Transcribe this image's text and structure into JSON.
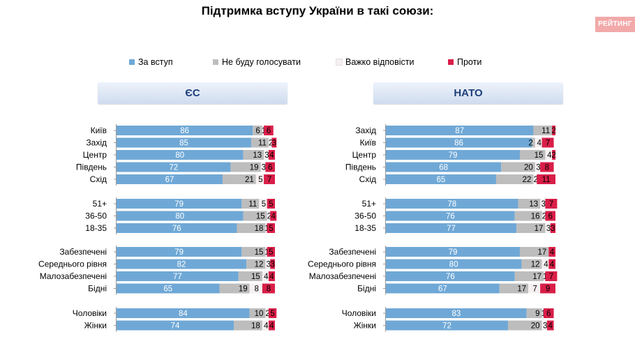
{
  "title": "Підтримка вступу України в такі союзи:",
  "logo": "РЕЙТИНГ",
  "colors": {
    "support": "#6fa8d6",
    "notvote": "#bdbdbd",
    "hard": "#f6f0f1",
    "against": "#d91e48",
    "axis": "#9a9a9a"
  },
  "legend": [
    {
      "key": "support",
      "label": "За вступ"
    },
    {
      "key": "notvote",
      "label": "Не буду голосувати"
    },
    {
      "key": "hard",
      "label": "Важко відповісти"
    },
    {
      "key": "against",
      "label": "Проти"
    }
  ],
  "chart_data": [
    {
      "type": "bar",
      "stacked": true,
      "orientation": "horizontal",
      "title": "ЄС",
      "xlim": [
        0,
        100
      ],
      "categories": [
        "Київ",
        "Захід",
        "Центр",
        "Південь",
        "Схід",
        "51+",
        "36-50",
        "18-35",
        "Забезпечені",
        "Середнього рівня",
        "Малозабезпечені",
        "Бідні",
        "Чоловіки",
        "Жінки"
      ],
      "groups": [
        [
          0,
          1,
          2,
          3,
          4
        ],
        [
          5,
          6,
          7
        ],
        [
          8,
          9,
          10,
          11
        ],
        [
          12,
          13
        ]
      ],
      "series": [
        {
          "name": "За вступ",
          "key": "support",
          "values": [
            86,
            85,
            80,
            72,
            67,
            79,
            80,
            76,
            79,
            82,
            77,
            65,
            84,
            74
          ]
        },
        {
          "name": "Не буду голосувати",
          "key": "notvote",
          "values": [
            6,
            11,
            13,
            19,
            21,
            11,
            15,
            18,
            15,
            12,
            15,
            19,
            10,
            18
          ]
        },
        {
          "name": "Важко відповісти",
          "key": "hard",
          "values": [
            1,
            2,
            3,
            3,
            5,
            5,
            2,
            1,
            1,
            3,
            4,
            8,
            2,
            4
          ]
        },
        {
          "name": "Проти",
          "key": "against",
          "values": [
            6,
            3,
            4,
            6,
            7,
            5,
            4,
            5,
            5,
            3,
            4,
            8,
            5,
            4
          ]
        }
      ]
    },
    {
      "type": "bar",
      "stacked": true,
      "orientation": "horizontal",
      "title": "НАТО",
      "xlim": [
        0,
        100
      ],
      "categories": [
        "Захід",
        "Київ",
        "Центр",
        "Південь",
        "Схід",
        "51+",
        "36-50",
        "18-35",
        "Забезпечені",
        "Середнього рівня",
        "Малозабезпечені",
        "Бідні",
        "Чоловіки",
        "Жінки"
      ],
      "groups": [
        [
          0,
          1,
          2,
          3,
          4
        ],
        [
          5,
          6,
          7
        ],
        [
          8,
          9,
          10,
          11
        ],
        [
          12,
          13
        ]
      ],
      "series": [
        {
          "name": "За вступ",
          "key": "support",
          "values": [
            87,
            86,
            79,
            68,
            65,
            78,
            76,
            77,
            79,
            80,
            76,
            67,
            83,
            72
          ]
        },
        {
          "name": "Не буду голосувати",
          "key": "notvote",
          "values": [
            11,
            2,
            15,
            20,
            22,
            13,
            16,
            17,
            17,
            12,
            17,
            17,
            9,
            20
          ]
        },
        {
          "name": "Важко відповісти",
          "key": "hard",
          "values": [
            0,
            4,
            4,
            3,
            2,
            3,
            2,
            3,
            0,
            4,
            1,
            7,
            1,
            3
          ]
        },
        {
          "name": "Проти",
          "key": "against",
          "values": [
            2,
            7,
            2,
            8,
            11,
            7,
            6,
            3,
            4,
            4,
            7,
            9,
            6,
            4
          ]
        }
      ]
    }
  ]
}
